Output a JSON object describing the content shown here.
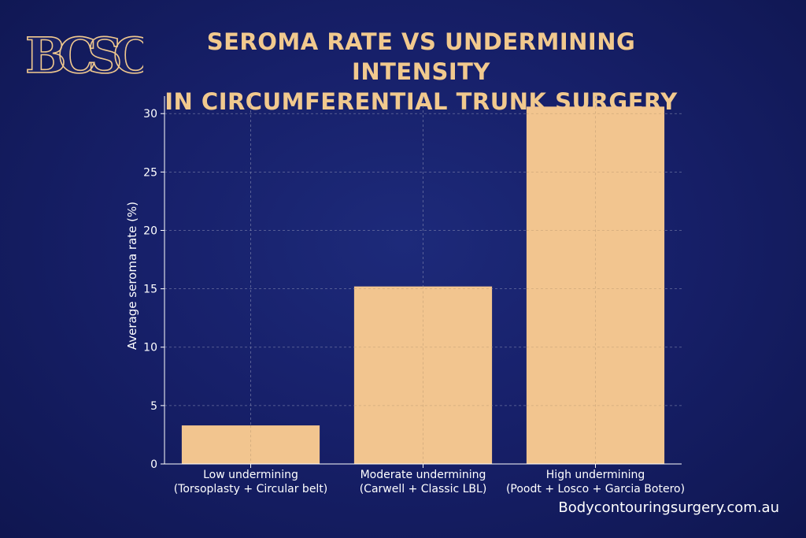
{
  "header": {
    "logo_text": "BCSC",
    "title_line1": "Seroma Rate vs Undermining Intensity",
    "title_line2": "in Circumferential Trunk Surgery"
  },
  "footer": {
    "website": "Bodycontouringsurgery.com.au"
  },
  "colors": {
    "background": "#17206a",
    "bar": "#f2c58f",
    "title": "#f1c98e",
    "grid": "#8a8fb3",
    "text": "#ffffff"
  },
  "chart_data": {
    "type": "bar",
    "title": "",
    "xlabel": "",
    "ylabel": "Average seroma rate (%)",
    "categories": [
      [
        "Low undermining",
        "(Torsoplasty + Circular belt)"
      ],
      [
        "Moderate undermining",
        "(Carwell + Classic LBL)"
      ],
      [
        "High undermining",
        "(Poodt + Losco + Garcia Botero)"
      ]
    ],
    "values": [
      3.3,
      15.2,
      30.6
    ],
    "ylim": [
      0,
      31.5
    ],
    "yticks": [
      0,
      5,
      10,
      15,
      20,
      25,
      30
    ],
    "grid": true,
    "grid_style": "dashed",
    "legend": "none"
  }
}
